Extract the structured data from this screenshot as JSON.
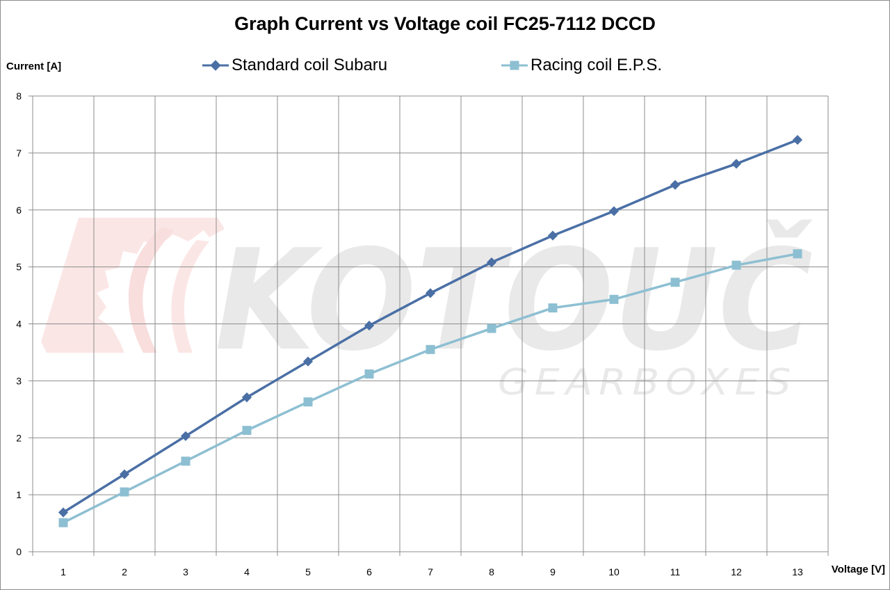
{
  "chart_data": {
    "type": "line",
    "title": "Graph Current vs Voltage coil FC25-7112 DCCD",
    "xlabel": "Voltage [V]",
    "ylabel": "Current [A]",
    "x": [
      1,
      2,
      3,
      4,
      5,
      6,
      7,
      8,
      9,
      10,
      11,
      12,
      13
    ],
    "ylim": [
      0,
      8
    ],
    "yticks": [
      0,
      1,
      2,
      3,
      4,
      5,
      6,
      7,
      8
    ],
    "grid": true,
    "legend_position": "top",
    "series": [
      {
        "name": "Standard coil Subaru",
        "color": "#4a6fa5",
        "marker": "diamond",
        "values": [
          0.69,
          1.36,
          2.03,
          2.71,
          3.34,
          3.97,
          4.54,
          5.08,
          5.55,
          5.98,
          6.44,
          6.81,
          7.23
        ]
      },
      {
        "name": "Racing coil E.P.S.",
        "color": "#8dbfd2",
        "marker": "square",
        "values": [
          0.51,
          1.05,
          1.59,
          2.13,
          2.63,
          3.12,
          3.55,
          3.92,
          4.28,
          4.43,
          4.73,
          5.03,
          5.23
        ]
      }
    ]
  },
  "watermark": {
    "brand": "KOTOUČ",
    "tagline": "GEARBOXES"
  }
}
